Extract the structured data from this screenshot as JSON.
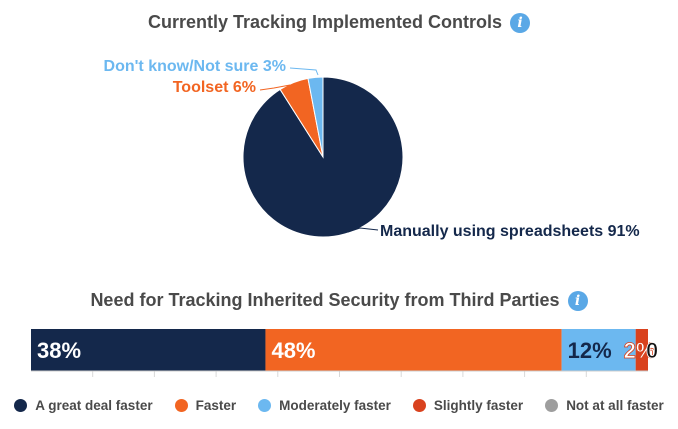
{
  "chart_data": [
    {
      "type": "pie",
      "title": "Currently Tracking Implemented Controls",
      "slices": [
        {
          "label": "Manually using spreadsheets",
          "value": 91,
          "display": "Manually using spreadsheets 91%",
          "color": "#14284b",
          "label_color": "#14284b"
        },
        {
          "label": "Toolset",
          "value": 6,
          "display": "Toolset 6%",
          "color": "#f26522",
          "label_color": "#f26522"
        },
        {
          "label": "Don't know/Not sure",
          "value": 3,
          "display": "Don't know/Not sure 3%",
          "color": "#6cb8f0",
          "label_color": "#6cb8f0"
        }
      ]
    },
    {
      "type": "bar",
      "stacked": true,
      "orientation": "horizontal",
      "title": "Need for Tracking Inherited Security from Third Parties",
      "series": [
        {
          "name": "A great deal faster",
          "value": 38,
          "label": "38%",
          "color": "#14284b"
        },
        {
          "name": "Faster",
          "value": 48,
          "label": "48%",
          "color": "#f26522"
        },
        {
          "name": "Moderately faster",
          "value": 12,
          "label": "12%",
          "color": "#6cb8f0"
        },
        {
          "name": "Slightly faster",
          "value": 2,
          "label": "2%",
          "color": "#d9421e"
        },
        {
          "name": "Not at all faster",
          "value": 0,
          "label": "0",
          "color": "#9e9e9e"
        }
      ],
      "xlim": [
        0,
        100
      ],
      "legend_position": "bottom"
    }
  ],
  "icons": {
    "info": "i"
  }
}
